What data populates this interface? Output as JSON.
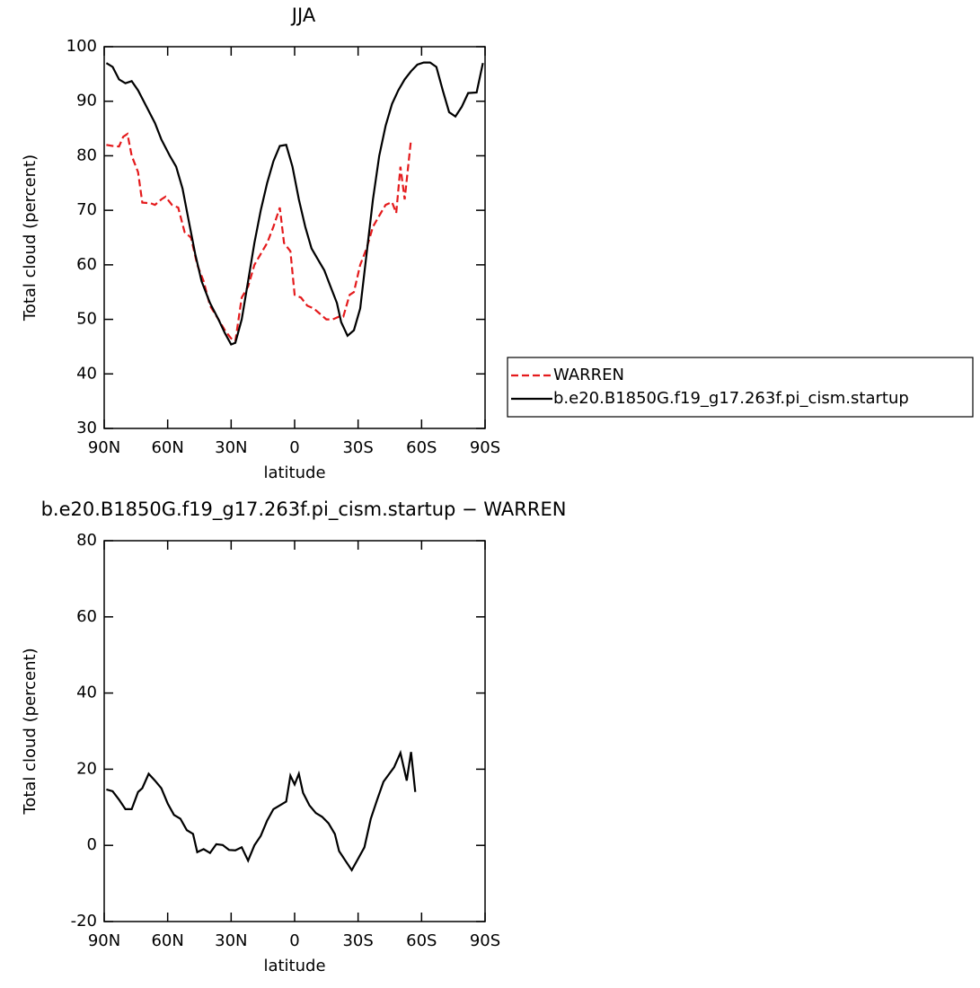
{
  "chart_data": [
    {
      "type": "line",
      "title": "JJA",
      "xlabel": "latitude",
      "ylabel": "Total cloud (percent)",
      "xlim": [
        90,
        -90
      ],
      "ylim": [
        30,
        100
      ],
      "xticks": [
        {
          "value": 90,
          "label": "90N"
        },
        {
          "value": 60,
          "label": "60N"
        },
        {
          "value": 30,
          "label": "30N"
        },
        0,
        {
          "value": -30,
          "label": "30S"
        },
        {
          "value": -60,
          "label": "60S"
        },
        {
          "value": -90,
          "label": "90S"
        }
      ],
      "yticks": [
        30,
        40,
        50,
        60,
        70,
        80,
        90,
        100
      ],
      "legend": "right",
      "series": [
        {
          "name": "WARREN",
          "color": "#e41a1c",
          "dash": true,
          "x": [
            89,
            86,
            83,
            81,
            79,
            77,
            74,
            72,
            68,
            66,
            63,
            61,
            58,
            55,
            52,
            49,
            46,
            43,
            40,
            36,
            33,
            30,
            28,
            25,
            22,
            19,
            16,
            13,
            10,
            7,
            5,
            2,
            0,
            -3,
            -6,
            -9,
            -12,
            -15,
            -18,
            -21,
            -23,
            -26,
            -28,
            -31,
            -34,
            -37,
            -40,
            -43,
            -46,
            -48,
            -50,
            -52,
            -55
          ],
          "values": [
            82,
            81.8,
            81.7,
            83.5,
            84,
            80,
            77,
            71.4,
            71.3,
            71,
            72,
            72.5,
            71,
            70.5,
            66,
            65,
            60,
            57,
            52.5,
            50,
            48,
            46.5,
            46,
            54,
            56,
            60,
            62,
            64,
            67,
            70.5,
            64,
            62.5,
            54.5,
            54,
            52.5,
            52,
            51,
            50,
            50,
            50.5,
            50.5,
            54.5,
            55,
            60,
            63,
            67,
            69,
            71,
            71.5,
            69.5,
            78,
            72,
            83
          ]
        },
        {
          "name": "b.e20.B1850G.f19_g17.263f.pi_cism.startup",
          "color": "#000000",
          "dash": false,
          "x": [
            89,
            86,
            83,
            80,
            77,
            74,
            70,
            66,
            63,
            59,
            56,
            53,
            50,
            47,
            44,
            40,
            36,
            33,
            30,
            28,
            25,
            22,
            19,
            16,
            13,
            10,
            7,
            4,
            1,
            -2,
            -5,
            -8,
            -11,
            -14,
            -17,
            -20,
            -22,
            -25,
            -28,
            -31,
            -34,
            -37,
            -40,
            -43,
            -46,
            -49,
            -52,
            -55,
            -58,
            -61,
            -64,
            -67,
            -70,
            -73,
            -76,
            -79,
            -82,
            -86,
            -89
          ],
          "values": [
            97,
            96.3,
            94,
            93.3,
            93.7,
            92,
            89,
            86,
            83,
            80,
            78,
            74,
            68,
            62,
            57,
            53,
            50,
            47.5,
            45.4,
            45.7,
            50,
            57,
            64,
            70,
            75,
            79,
            81.8,
            82,
            78,
            72,
            67,
            63,
            61,
            59,
            56,
            53,
            49.5,
            47,
            48,
            52,
            62,
            72,
            80,
            85.5,
            89.5,
            92,
            94,
            95.5,
            96.7,
            97.1,
            97.1,
            96.3,
            92,
            88,
            87.2,
            89,
            91.5,
            91.6,
            97
          ]
        }
      ]
    },
    {
      "type": "line",
      "title": "b.e20.B1850G.f19_g17.263f.pi_cism.startup  −  WARREN",
      "xlabel": "latitude",
      "ylabel": "Total cloud (percent)",
      "xlim": [
        90,
        -90
      ],
      "ylim": [
        -20,
        80
      ],
      "xticks": [
        {
          "value": 90,
          "label": "90N"
        },
        {
          "value": 60,
          "label": "60N"
        },
        {
          "value": 30,
          "label": "30N"
        },
        0,
        {
          "value": -30,
          "label": "30S"
        },
        {
          "value": -60,
          "label": "60S"
        },
        {
          "value": -90,
          "label": "90S"
        }
      ],
      "yticks": [
        -20,
        0,
        20,
        40,
        60,
        80
      ],
      "series": [
        {
          "color": "#000000",
          "dash": false,
          "x": [
            89,
            86,
            83,
            80,
            77,
            74,
            72,
            69,
            66,
            63,
            60,
            57,
            54,
            51,
            48,
            46,
            43,
            40,
            37,
            34,
            31,
            28,
            25,
            22,
            19,
            16,
            13,
            10,
            7,
            4,
            2,
            0,
            -2,
            -4,
            -7,
            -10,
            -13,
            -16,
            -19,
            -21,
            -24,
            -27,
            -30,
            -33,
            -36,
            -39,
            -42,
            -45,
            -47,
            -50,
            -53,
            -55,
            -57
          ],
          "values": [
            14.7,
            14.2,
            12,
            9.5,
            9.5,
            14,
            15,
            18.8,
            17,
            15,
            11,
            8,
            7,
            4,
            3,
            -1.8,
            -1,
            -2,
            0.3,
            0.1,
            -1.2,
            -1.3,
            -0.5,
            -4,
            0,
            2.5,
            6.5,
            9.5,
            10.5,
            11.5,
            18.3,
            16,
            18.8,
            13.8,
            10.5,
            8.5,
            7.5,
            5.8,
            3,
            -1.5,
            -4,
            -6.5,
            -3.5,
            -0.5,
            7,
            12,
            16.7,
            19,
            20.5,
            24.3,
            17,
            24.5,
            14
          ]
        }
      ]
    }
  ]
}
